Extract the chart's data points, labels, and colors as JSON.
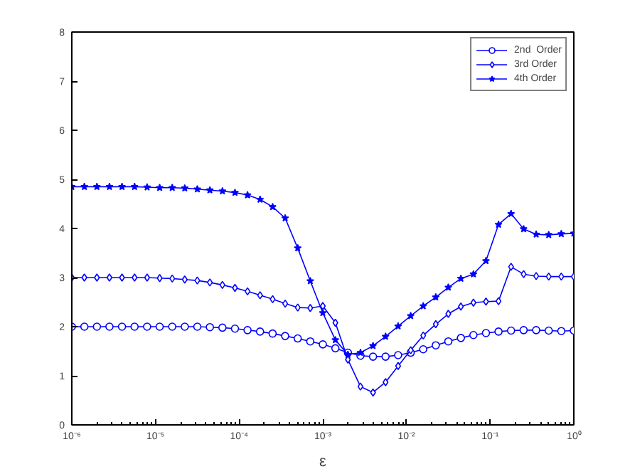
{
  "chart_data": {
    "type": "line",
    "xlabel": "ε",
    "log": "x",
    "grid": false,
    "legend": "top right",
    "line_style": "solid",
    "xlim": [
      1e-06,
      1
    ],
    "ylim": [
      0,
      8
    ],
    "xticks": [
      {
        "value": 1e-06,
        "label": "10⁻⁶"
      },
      {
        "value": 1e-05,
        "label": "10⁻⁵"
      },
      {
        "value": 0.0001,
        "label": "10⁻⁴"
      },
      {
        "value": 0.001,
        "label": "10⁻³"
      },
      {
        "value": 0.01,
        "label": "10⁻²"
      },
      {
        "value": 0.1,
        "label": "10⁻¹"
      },
      {
        "value": 1,
        "label": "10⁰"
      }
    ],
    "yticks": [
      0,
      1,
      2,
      3,
      4,
      5,
      6,
      7,
      8
    ],
    "x": [
      1e-06,
      1.413e-06,
      1.995e-06,
      2.818e-06,
      3.981e-06,
      5.623e-06,
      7.943e-06,
      1.122e-05,
      1.585e-05,
      2.239e-05,
      3.162e-05,
      4.467e-05,
      6.31e-05,
      8.913e-05,
      0.0001259,
      0.0001778,
      0.0002512,
      0.0003548,
      0.0005012,
      0.0007079,
      0.001,
      0.001413,
      0.001995,
      0.002818,
      0.003981,
      0.005623,
      0.007943,
      0.01122,
      0.01585,
      0.02239,
      0.03162,
      0.04467,
      0.0631,
      0.08913,
      0.1259,
      0.1778,
      0.2512,
      0.3548,
      0.5012,
      0.7079,
      1
    ],
    "series": [
      {
        "name": "2nd  Order",
        "color": "#0000ff",
        "marker": "circle",
        "values": [
          2.0,
          2.0,
          2.0,
          2.0,
          2.0,
          2.0,
          2.0,
          2.0,
          2.0,
          2.0,
          2.0,
          1.99,
          1.98,
          1.96,
          1.93,
          1.9,
          1.86,
          1.81,
          1.76,
          1.7,
          1.64,
          1.56,
          1.47,
          1.41,
          1.39,
          1.39,
          1.42,
          1.47,
          1.54,
          1.62,
          1.7,
          1.77,
          1.83,
          1.87,
          1.9,
          1.92,
          1.93,
          1.93,
          1.92,
          1.91,
          1.92
        ]
      },
      {
        "name": "3rd Order",
        "color": "#0000ff",
        "marker": "diamond",
        "values": [
          3.0,
          3.0,
          3.0,
          3.0,
          3.0,
          3.0,
          3.0,
          2.99,
          2.98,
          2.96,
          2.94,
          2.9,
          2.85,
          2.79,
          2.72,
          2.64,
          2.56,
          2.47,
          2.39,
          2.38,
          2.42,
          2.08,
          1.33,
          0.78,
          0.66,
          0.87,
          1.2,
          1.52,
          1.82,
          2.05,
          2.26,
          2.41,
          2.49,
          2.51,
          2.52,
          3.22,
          3.07,
          3.03,
          3.02,
          3.02,
          3.02
        ]
      },
      {
        "name": "4th Order",
        "color": "#0000ff",
        "marker": "star",
        "values": [
          4.85,
          4.85,
          4.85,
          4.85,
          4.85,
          4.85,
          4.84,
          4.83,
          4.83,
          4.82,
          4.8,
          4.78,
          4.76,
          4.73,
          4.68,
          4.59,
          4.44,
          4.21,
          3.6,
          2.93,
          2.28,
          1.73,
          1.43,
          1.47,
          1.61,
          1.8,
          2.01,
          2.22,
          2.42,
          2.6,
          2.8,
          2.98,
          3.07,
          3.34,
          4.08,
          4.3,
          3.99,
          3.88,
          3.87,
          3.89,
          3.9
        ]
      }
    ]
  }
}
